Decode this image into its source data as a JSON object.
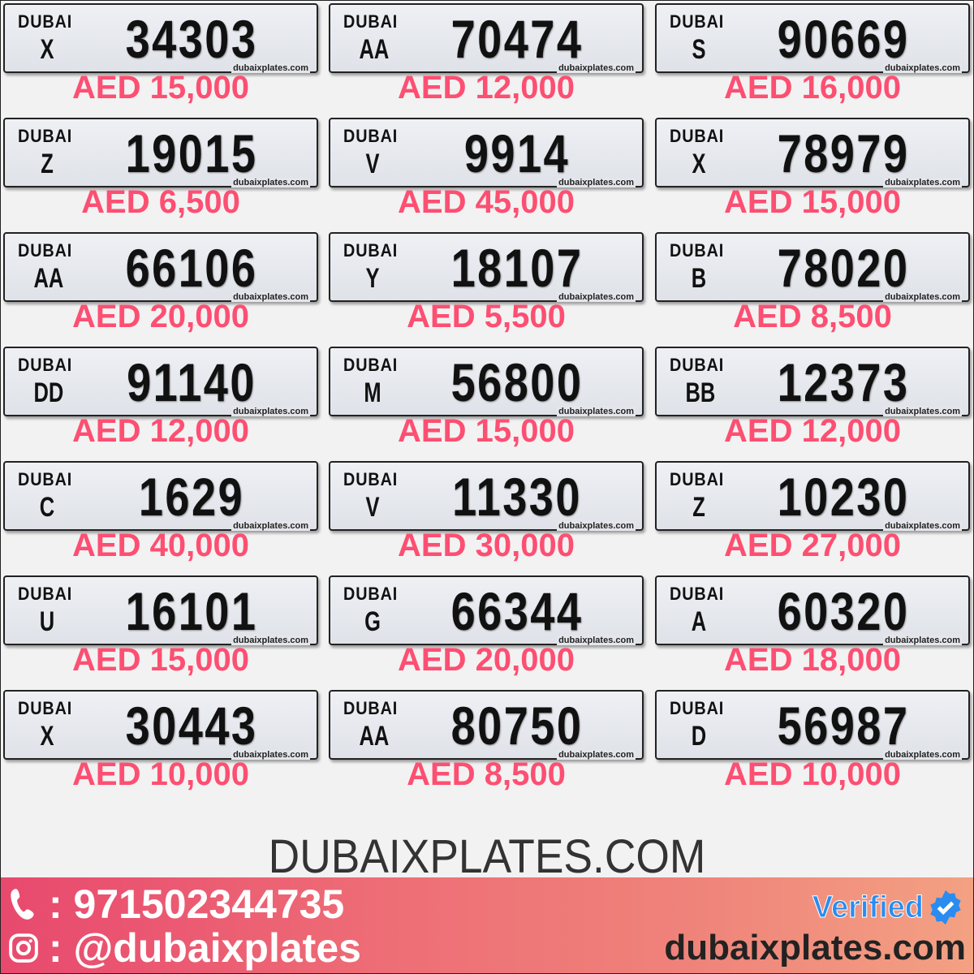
{
  "plate_header": "DUBAI",
  "plate_watermark": "dubaixplates.com",
  "plates": [
    {
      "letter": "X",
      "number": "34303",
      "price": "AED 15,000"
    },
    {
      "letter": "AA",
      "number": "70474",
      "price": "AED 12,000"
    },
    {
      "letter": "S",
      "number": "90669",
      "price": "AED 16,000"
    },
    {
      "letter": "Z",
      "number": "19015",
      "price": "AED 6,500"
    },
    {
      "letter": "V",
      "number": "9914",
      "price": "AED 45,000"
    },
    {
      "letter": "X",
      "number": "78979",
      "price": "AED 15,000"
    },
    {
      "letter": "AA",
      "number": "66106",
      "price": "AED 20,000"
    },
    {
      "letter": "Y",
      "number": "18107",
      "price": "AED 5,500"
    },
    {
      "letter": "B",
      "number": "78020",
      "price": "AED 8,500"
    },
    {
      "letter": "DD",
      "number": "91140",
      "price": "AED 12,000"
    },
    {
      "letter": "M",
      "number": "56800",
      "price": "AED 15,000"
    },
    {
      "letter": "BB",
      "number": "12373",
      "price": "AED 12,000"
    },
    {
      "letter": "C",
      "number": "1629",
      "price": "AED 40,000"
    },
    {
      "letter": "V",
      "number": "11330",
      "price": "AED 30,000"
    },
    {
      "letter": "Z",
      "number": "10230",
      "price": "AED 27,000"
    },
    {
      "letter": "U",
      "number": "16101",
      "price": "AED 15,000"
    },
    {
      "letter": "G",
      "number": "66344",
      "price": "AED 20,000"
    },
    {
      "letter": "A",
      "number": "60320",
      "price": "AED 18,000"
    },
    {
      "letter": "X",
      "number": "30443",
      "price": "AED 10,000"
    },
    {
      "letter": "AA",
      "number": "80750",
      "price": "AED 8,500"
    },
    {
      "letter": "D",
      "number": "56987",
      "price": "AED 10,000"
    }
  ],
  "site_title": "DUBAIXPLATES.COM",
  "banner": {
    "phone": ": 971502344735",
    "instagram": ": @dubaixplates",
    "verified": "Verified",
    "domain": "dubaixplates.com"
  },
  "colors": {
    "price": "#fd4f72",
    "banner_start": "#e8496e",
    "banner_end": "#f3a183",
    "verified": "#2a8cf0"
  }
}
